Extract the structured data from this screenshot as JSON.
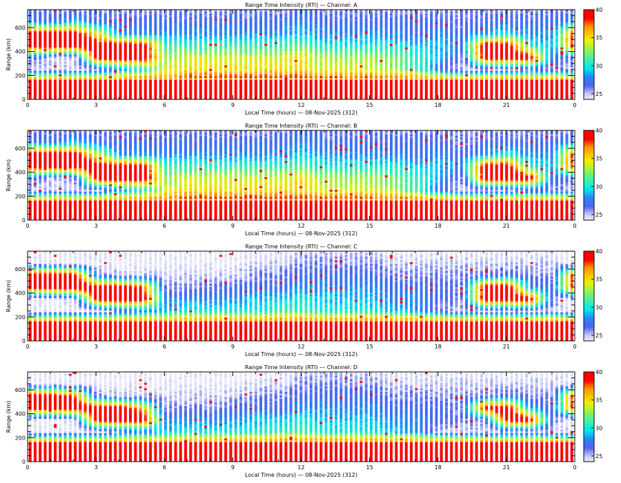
{
  "chart_data": [
    {
      "type": "heatmap",
      "title": "Range Time Intensity (RTI) — Channel: A",
      "xlabel": "Local Time (hours) — 08-Nov-2025 (312)",
      "ylabel": "Range (km)",
      "xlim": [
        0,
        24
      ],
      "ylim": [
        0,
        750
      ],
      "x_tick_labels": [
        "0",
        "3",
        "6",
        "9",
        "12",
        "15",
        "18",
        "21",
        "0"
      ],
      "y_tick_labels": [
        "0",
        "200",
        "400",
        "600"
      ],
      "colorbar": {
        "range": [
          24,
          40
        ],
        "tick_labels": [
          "25",
          "30",
          "35",
          "40"
        ]
      },
      "range_bins_km": [
        50,
        150,
        250,
        350,
        450,
        550,
        650,
        750
      ],
      "hours": [
        0,
        1,
        2,
        3,
        4,
        5,
        6,
        7,
        8,
        9,
        10,
        11,
        12,
        13,
        14,
        15,
        16,
        17,
        18,
        19,
        20,
        21,
        22,
        23
      ],
      "values": [
        [
          40,
          40,
          25,
          27,
          40,
          40,
          28,
          26
        ],
        [
          40,
          40,
          25,
          25,
          40,
          40,
          27,
          26
        ],
        [
          40,
          40,
          25,
          25,
          40,
          40,
          29,
          26
        ],
        [
          40,
          40,
          25,
          40,
          40,
          35,
          27,
          26
        ],
        [
          40,
          40,
          28,
          40,
          40,
          28,
          27,
          26
        ],
        [
          40,
          40,
          30,
          40,
          40,
          28,
          27,
          26
        ],
        [
          40,
          38,
          34,
          33,
          31,
          28,
          27,
          26
        ],
        [
          40,
          40,
          35,
          34,
          31,
          28,
          27,
          26
        ],
        [
          40,
          40,
          35,
          34,
          31,
          28,
          27,
          26
        ],
        [
          40,
          40,
          35,
          34,
          31,
          28,
          27,
          26
        ],
        [
          40,
          40,
          35,
          34,
          31,
          28,
          27,
          26
        ],
        [
          40,
          40,
          35,
          34,
          31,
          28,
          27,
          26
        ],
        [
          40,
          40,
          35,
          35,
          32,
          29,
          28,
          27
        ],
        [
          40,
          40,
          34,
          33,
          30,
          28,
          27,
          26
        ],
        [
          40,
          40,
          34,
          33,
          30,
          28,
          27,
          26
        ],
        [
          40,
          40,
          34,
          33,
          30,
          28,
          27,
          26
        ],
        [
          40,
          40,
          33,
          32,
          30,
          28,
          27,
          26
        ],
        [
          40,
          40,
          31,
          31,
          29,
          27,
          27,
          26
        ],
        [
          40,
          40,
          27,
          29,
          29,
          28,
          27,
          26
        ],
        [
          40,
          40,
          25,
          26,
          28,
          27,
          26,
          26
        ],
        [
          40,
          40,
          25,
          40,
          40,
          28,
          27,
          26
        ],
        [
          40,
          40,
          25,
          40,
          40,
          30,
          27,
          26
        ],
        [
          40,
          40,
          26,
          40,
          30,
          28,
          27,
          26
        ],
        [
          40,
          40,
          26,
          27,
          29,
          28,
          27,
          26
        ]
      ]
    },
    {
      "type": "heatmap",
      "title": "Range Time Intensity (RTI) — Channel: B",
      "xlabel": "Local Time (hours) — 08-Nov-2025 (312)",
      "ylabel": "Range (km)",
      "xlim": [
        0,
        24
      ],
      "ylim": [
        0,
        750
      ],
      "x_tick_labels": [
        "0",
        "3",
        "6",
        "9",
        "12",
        "15",
        "18",
        "21",
        "0"
      ],
      "y_tick_labels": [
        "0",
        "200",
        "400",
        "600"
      ],
      "colorbar": {
        "range": [
          24,
          40
        ],
        "tick_labels": [
          "25",
          "30",
          "35",
          "40"
        ]
      },
      "range_bins_km": [
        50,
        150,
        250,
        350,
        450,
        550,
        650,
        750
      ],
      "hours": [
        0,
        1,
        2,
        3,
        4,
        5,
        6,
        7,
        8,
        9,
        10,
        11,
        12,
        13,
        14,
        15,
        16,
        17,
        18,
        19,
        20,
        21,
        22,
        23
      ],
      "values": [
        [
          40,
          40,
          25,
          27,
          40,
          40,
          28,
          26
        ],
        [
          40,
          40,
          25,
          25,
          40,
          40,
          27,
          26
        ],
        [
          40,
          40,
          25,
          26,
          40,
          40,
          29,
          26
        ],
        [
          40,
          40,
          25,
          40,
          40,
          34,
          27,
          26
        ],
        [
          40,
          40,
          28,
          40,
          40,
          28,
          27,
          26
        ],
        [
          40,
          40,
          30,
          40,
          40,
          28,
          27,
          26
        ],
        [
          40,
          38,
          34,
          33,
          31,
          28,
          27,
          26
        ],
        [
          40,
          40,
          35,
          34,
          31,
          28,
          27,
          26
        ],
        [
          40,
          40,
          35,
          34,
          31,
          28,
          27,
          26
        ],
        [
          40,
          40,
          35,
          34,
          31,
          28,
          27,
          26
        ],
        [
          40,
          40,
          35,
          34,
          31,
          28,
          27,
          26
        ],
        [
          40,
          40,
          35,
          34,
          31,
          28,
          27,
          26
        ],
        [
          40,
          40,
          35,
          35,
          32,
          29,
          28,
          27
        ],
        [
          40,
          40,
          34,
          33,
          30,
          28,
          27,
          26
        ],
        [
          40,
          40,
          34,
          33,
          30,
          28,
          27,
          26
        ],
        [
          40,
          40,
          34,
          33,
          30,
          28,
          27,
          26
        ],
        [
          40,
          40,
          33,
          32,
          30,
          28,
          27,
          26
        ],
        [
          40,
          40,
          31,
          31,
          29,
          27,
          27,
          26
        ],
        [
          40,
          40,
          27,
          29,
          29,
          28,
          27,
          26
        ],
        [
          40,
          40,
          25,
          26,
          28,
          27,
          26,
          26
        ],
        [
          40,
          40,
          25,
          40,
          40,
          28,
          27,
          26
        ],
        [
          40,
          40,
          25,
          40,
          40,
          30,
          27,
          26
        ],
        [
          40,
          40,
          26,
          40,
          30,
          28,
          27,
          26
        ],
        [
          40,
          40,
          26,
          27,
          29,
          28,
          27,
          26
        ]
      ]
    },
    {
      "type": "heatmap",
      "title": "Range Time Intensity (RTI) — Channel: C",
      "xlabel": "Local Time (hours) — 08-Nov-2025 (312)",
      "ylabel": "Range (km)",
      "xlim": [
        0,
        24
      ],
      "ylim": [
        0,
        750
      ],
      "x_tick_labels": [
        "0",
        "3",
        "6",
        "9",
        "12",
        "15",
        "18",
        "21",
        "0"
      ],
      "y_tick_labels": [
        "0",
        "200",
        "400",
        "600"
      ],
      "colorbar": {
        "range": [
          24,
          40
        ],
        "tick_labels": [
          "25",
          "30",
          "35",
          "40"
        ]
      },
      "range_bins_km": [
        50,
        150,
        250,
        350,
        450,
        550,
        650,
        750
      ],
      "hours": [
        0,
        1,
        2,
        3,
        4,
        5,
        6,
        7,
        8,
        9,
        10,
        11,
        12,
        13,
        14,
        15,
        16,
        17,
        18,
        19,
        20,
        21,
        22,
        23
      ],
      "values": [
        [
          40,
          40,
          24,
          24,
          40,
          40,
          24,
          24
        ],
        [
          40,
          40,
          24,
          24,
          40,
          40,
          24,
          24
        ],
        [
          40,
          40,
          24,
          25,
          40,
          40,
          24,
          24
        ],
        [
          40,
          40,
          24,
          40,
          40,
          26,
          24,
          24
        ],
        [
          40,
          40,
          26,
          40,
          40,
          25,
          24,
          24
        ],
        [
          40,
          40,
          27,
          40,
          38,
          25,
          24,
          24
        ],
        [
          40,
          38,
          29,
          28,
          26,
          25,
          24,
          24
        ],
        [
          40,
          39,
          30,
          28,
          26,
          25,
          24,
          24
        ],
        [
          40,
          39,
          30,
          28,
          26,
          25,
          24,
          24
        ],
        [
          40,
          40,
          30,
          28,
          27,
          25,
          24,
          24
        ],
        [
          40,
          40,
          30,
          29,
          27,
          26,
          25,
          24
        ],
        [
          40,
          40,
          31,
          29,
          27,
          26,
          25,
          24
        ],
        [
          40,
          40,
          31,
          30,
          28,
          27,
          26,
          25
        ],
        [
          40,
          40,
          30,
          29,
          28,
          27,
          26,
          25
        ],
        [
          40,
          40,
          30,
          29,
          28,
          27,
          26,
          25
        ],
        [
          40,
          40,
          30,
          29,
          28,
          27,
          26,
          25
        ],
        [
          40,
          40,
          29,
          28,
          27,
          26,
          25,
          24
        ],
        [
          40,
          40,
          28,
          28,
          27,
          26,
          25,
          24
        ],
        [
          40,
          40,
          26,
          27,
          27,
          26,
          25,
          24
        ],
        [
          40,
          40,
          25,
          26,
          26,
          26,
          25,
          24
        ],
        [
          40,
          40,
          25,
          40,
          40,
          26,
          25,
          24
        ],
        [
          40,
          40,
          25,
          40,
          40,
          27,
          25,
          24
        ],
        [
          40,
          40,
          25,
          40,
          28,
          26,
          25,
          24
        ],
        [
          40,
          40,
          25,
          26,
          27,
          26,
          25,
          24
        ]
      ]
    },
    {
      "type": "heatmap",
      "title": "Range Time Intensity (RTI) — Channel: D",
      "xlabel": "Local Time (hours) — 08-Nov-2025 (312)",
      "ylabel": "Range (km)",
      "xlim": [
        0,
        24
      ],
      "ylim": [
        0,
        750
      ],
      "x_tick_labels": [
        "0",
        "3",
        "6",
        "9",
        "12",
        "15",
        "18",
        "21",
        "0"
      ],
      "y_tick_labels": [
        "0",
        "200",
        "400",
        "600"
      ],
      "colorbar": {
        "range": [
          24,
          40
        ],
        "tick_labels": [
          "25",
          "30",
          "35",
          "40"
        ]
      },
      "range_bins_km": [
        50,
        150,
        250,
        350,
        450,
        550,
        650,
        750
      ],
      "hours": [
        0,
        1,
        2,
        3,
        4,
        5,
        6,
        7,
        8,
        9,
        10,
        11,
        12,
        13,
        14,
        15,
        16,
        17,
        18,
        19,
        20,
        21,
        22,
        23
      ],
      "values": [
        [
          40,
          40,
          24,
          24,
          40,
          40,
          24,
          24
        ],
        [
          40,
          40,
          24,
          24,
          40,
          40,
          24,
          24
        ],
        [
          40,
          40,
          24,
          25,
          40,
          38,
          24,
          24
        ],
        [
          40,
          40,
          24,
          40,
          40,
          26,
          24,
          24
        ],
        [
          40,
          40,
          26,
          40,
          40,
          25,
          24,
          24
        ],
        [
          40,
          40,
          27,
          40,
          36,
          25,
          24,
          24
        ],
        [
          40,
          38,
          29,
          28,
          26,
          25,
          24,
          24
        ],
        [
          40,
          39,
          30,
          28,
          26,
          25,
          24,
          24
        ],
        [
          40,
          39,
          30,
          28,
          26,
          25,
          24,
          24
        ],
        [
          40,
          40,
          30,
          28,
          27,
          25,
          24,
          24
        ],
        [
          40,
          40,
          30,
          29,
          27,
          26,
          25,
          24
        ],
        [
          40,
          40,
          31,
          29,
          27,
          26,
          25,
          24
        ],
        [
          40,
          40,
          31,
          30,
          28,
          27,
          26,
          25
        ],
        [
          40,
          40,
          30,
          29,
          28,
          27,
          26,
          25
        ],
        [
          40,
          40,
          30,
          29,
          28,
          27,
          26,
          25
        ],
        [
          40,
          40,
          30,
          29,
          28,
          27,
          26,
          25
        ],
        [
          40,
          40,
          29,
          28,
          27,
          26,
          25,
          24
        ],
        [
          40,
          40,
          28,
          28,
          27,
          26,
          25,
          24
        ],
        [
          40,
          40,
          25,
          27,
          27,
          26,
          25,
          24
        ],
        [
          40,
          40,
          25,
          26,
          26,
          26,
          25,
          24
        ],
        [
          40,
          40,
          25,
          26,
          40,
          26,
          25,
          24
        ],
        [
          40,
          40,
          25,
          40,
          40,
          27,
          25,
          24
        ],
        [
          40,
          40,
          25,
          40,
          28,
          26,
          25,
          24
        ],
        [
          40,
          40,
          25,
          26,
          27,
          26,
          25,
          24
        ]
      ]
    }
  ]
}
